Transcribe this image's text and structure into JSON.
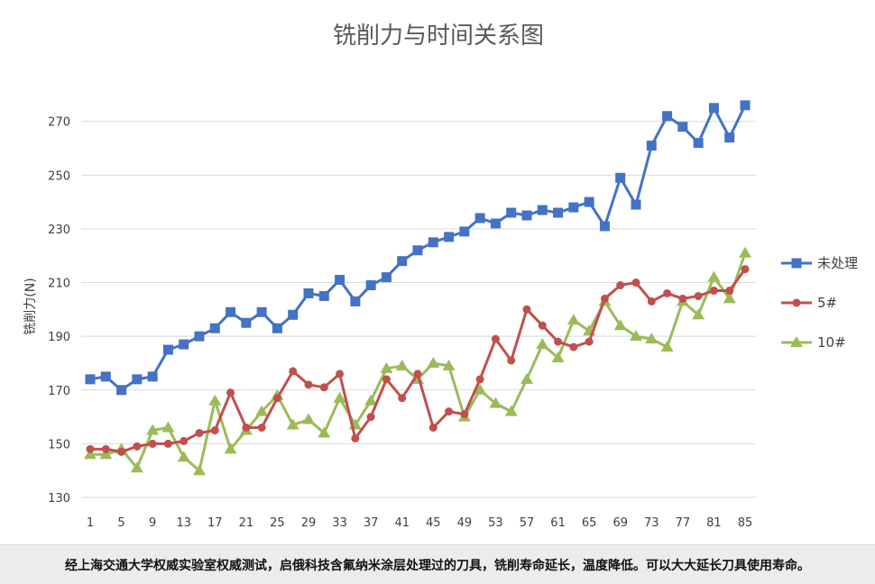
{
  "chart_data": {
    "type": "line",
    "title": "铣削力与时间关系图",
    "xlabel": "",
    "ylabel": "铣削力(N)",
    "ylim": [
      130,
      285
    ],
    "yticks": [
      130,
      150,
      170,
      190,
      210,
      230,
      250,
      270
    ],
    "x": [
      1,
      3,
      5,
      7,
      9,
      11,
      13,
      15,
      17,
      19,
      21,
      23,
      25,
      27,
      29,
      31,
      33,
      35,
      37,
      39,
      41,
      43,
      45,
      47,
      49,
      51,
      53,
      55,
      57,
      59,
      61,
      63,
      65,
      67,
      69,
      71,
      73,
      75,
      77,
      79,
      81,
      83,
      85
    ],
    "xticks": [
      1,
      5,
      9,
      13,
      17,
      21,
      25,
      29,
      33,
      37,
      41,
      45,
      49,
      53,
      57,
      61,
      65,
      69,
      73,
      77,
      81,
      85
    ],
    "grid": true,
    "legend_position": "right",
    "series": [
      {
        "name": "未处理",
        "color": "#4472c4",
        "marker": "square",
        "values": [
          174,
          175,
          170,
          174,
          175,
          185,
          187,
          190,
          193,
          199,
          195,
          199,
          193,
          198,
          206,
          205,
          211,
          203,
          209,
          212,
          218,
          222,
          225,
          227,
          229,
          234,
          232,
          236,
          235,
          237,
          236,
          238,
          240,
          231,
          249,
          239,
          261,
          272,
          268,
          262,
          275,
          264,
          276
        ]
      },
      {
        "name": "5#",
        "color": "#c0504d",
        "marker": "circle",
        "values": [
          148,
          148,
          147,
          149,
          150,
          150,
          151,
          154,
          155,
          169,
          156,
          156,
          167,
          177,
          172,
          171,
          176,
          152,
          160,
          174,
          167,
          176,
          156,
          162,
          161,
          174,
          189,
          181,
          200,
          194,
          188,
          186,
          188,
          204,
          209,
          210,
          203,
          206,
          204,
          205,
          207,
          207,
          215
        ]
      },
      {
        "name": "10#",
        "color": "#9bbb59",
        "marker": "triangle",
        "values": [
          146,
          146,
          148,
          141,
          155,
          156,
          145,
          140,
          166,
          148,
          155,
          162,
          168,
          157,
          159,
          154,
          167,
          157,
          166,
          178,
          179,
          174,
          180,
          179,
          160,
          170,
          165,
          162,
          174,
          187,
          182,
          196,
          192,
          203,
          194,
          190,
          189,
          186,
          203,
          198,
          212,
          204,
          221
        ]
      }
    ]
  },
  "caption": "经上海交通大学权威实验室权威测试，启俄科技含氟纳米涂层处理过的刀具，铣削寿命延长，温度降低。可以大大延长刀具使用寿命。"
}
